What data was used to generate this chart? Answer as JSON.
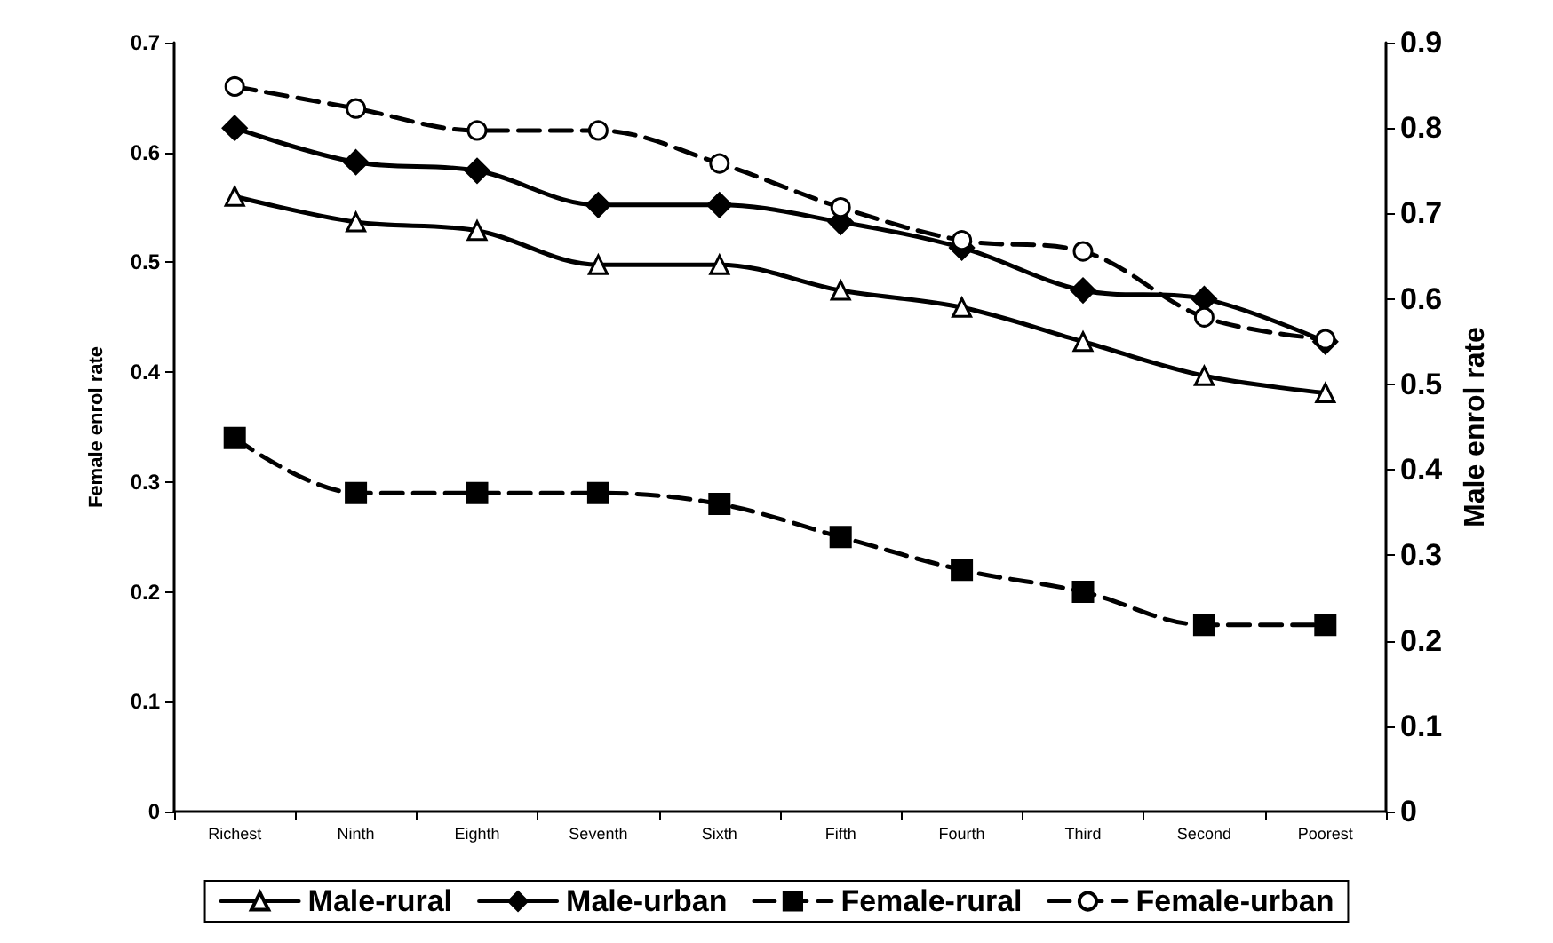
{
  "chart_data": {
    "type": "line",
    "ylabel": "Female enrol rate",
    "y2label": "Male enrol rate",
    "categories": [
      "Richest",
      "Ninth",
      "Eighth",
      "Seventh",
      "Sixth",
      "Fifth",
      "Fourth",
      "Third",
      "Second",
      "Poorest"
    ],
    "ylim": [
      0,
      0.7
    ],
    "yticks": [
      0,
      0.1,
      0.2,
      0.3,
      0.4,
      0.5,
      0.6,
      0.7
    ],
    "y2lim": [
      0,
      0.9
    ],
    "y2ticks": [
      0,
      0.1,
      0.2,
      0.3,
      0.4,
      0.5,
      0.6,
      0.7,
      0.8,
      0.9
    ],
    "grid": false,
    "legend": "bottom",
    "series": [
      {
        "name": "Male-rural",
        "color": "#000000",
        "axis": "y2",
        "marker": "triangle",
        "line_style": "solid",
        "values": [
          0.72,
          0.69,
          0.68,
          0.64,
          0.64,
          0.61,
          0.59,
          0.55,
          0.51,
          0.49
        ]
      },
      {
        "name": "Male-urban",
        "color": "#000000",
        "axis": "y2",
        "marker": "diamond",
        "line_style": "solid",
        "values": [
          0.8,
          0.76,
          0.75,
          0.71,
          0.71,
          0.69,
          0.66,
          0.61,
          0.6,
          0.55
        ]
      },
      {
        "name": "Female-rural",
        "color": "#000000",
        "marker": "square",
        "line_style": "dashed",
        "values": [
          0.34,
          0.29,
          0.29,
          0.29,
          0.28,
          0.25,
          0.22,
          0.2,
          0.17,
          0.17
        ]
      },
      {
        "name": "Female-urban",
        "color": "#000000",
        "marker": "circle",
        "line_style": "dashed",
        "values": [
          0.66,
          0.64,
          0.62,
          0.62,
          0.59,
          0.55,
          0.52,
          0.51,
          0.45,
          0.43
        ]
      }
    ]
  }
}
